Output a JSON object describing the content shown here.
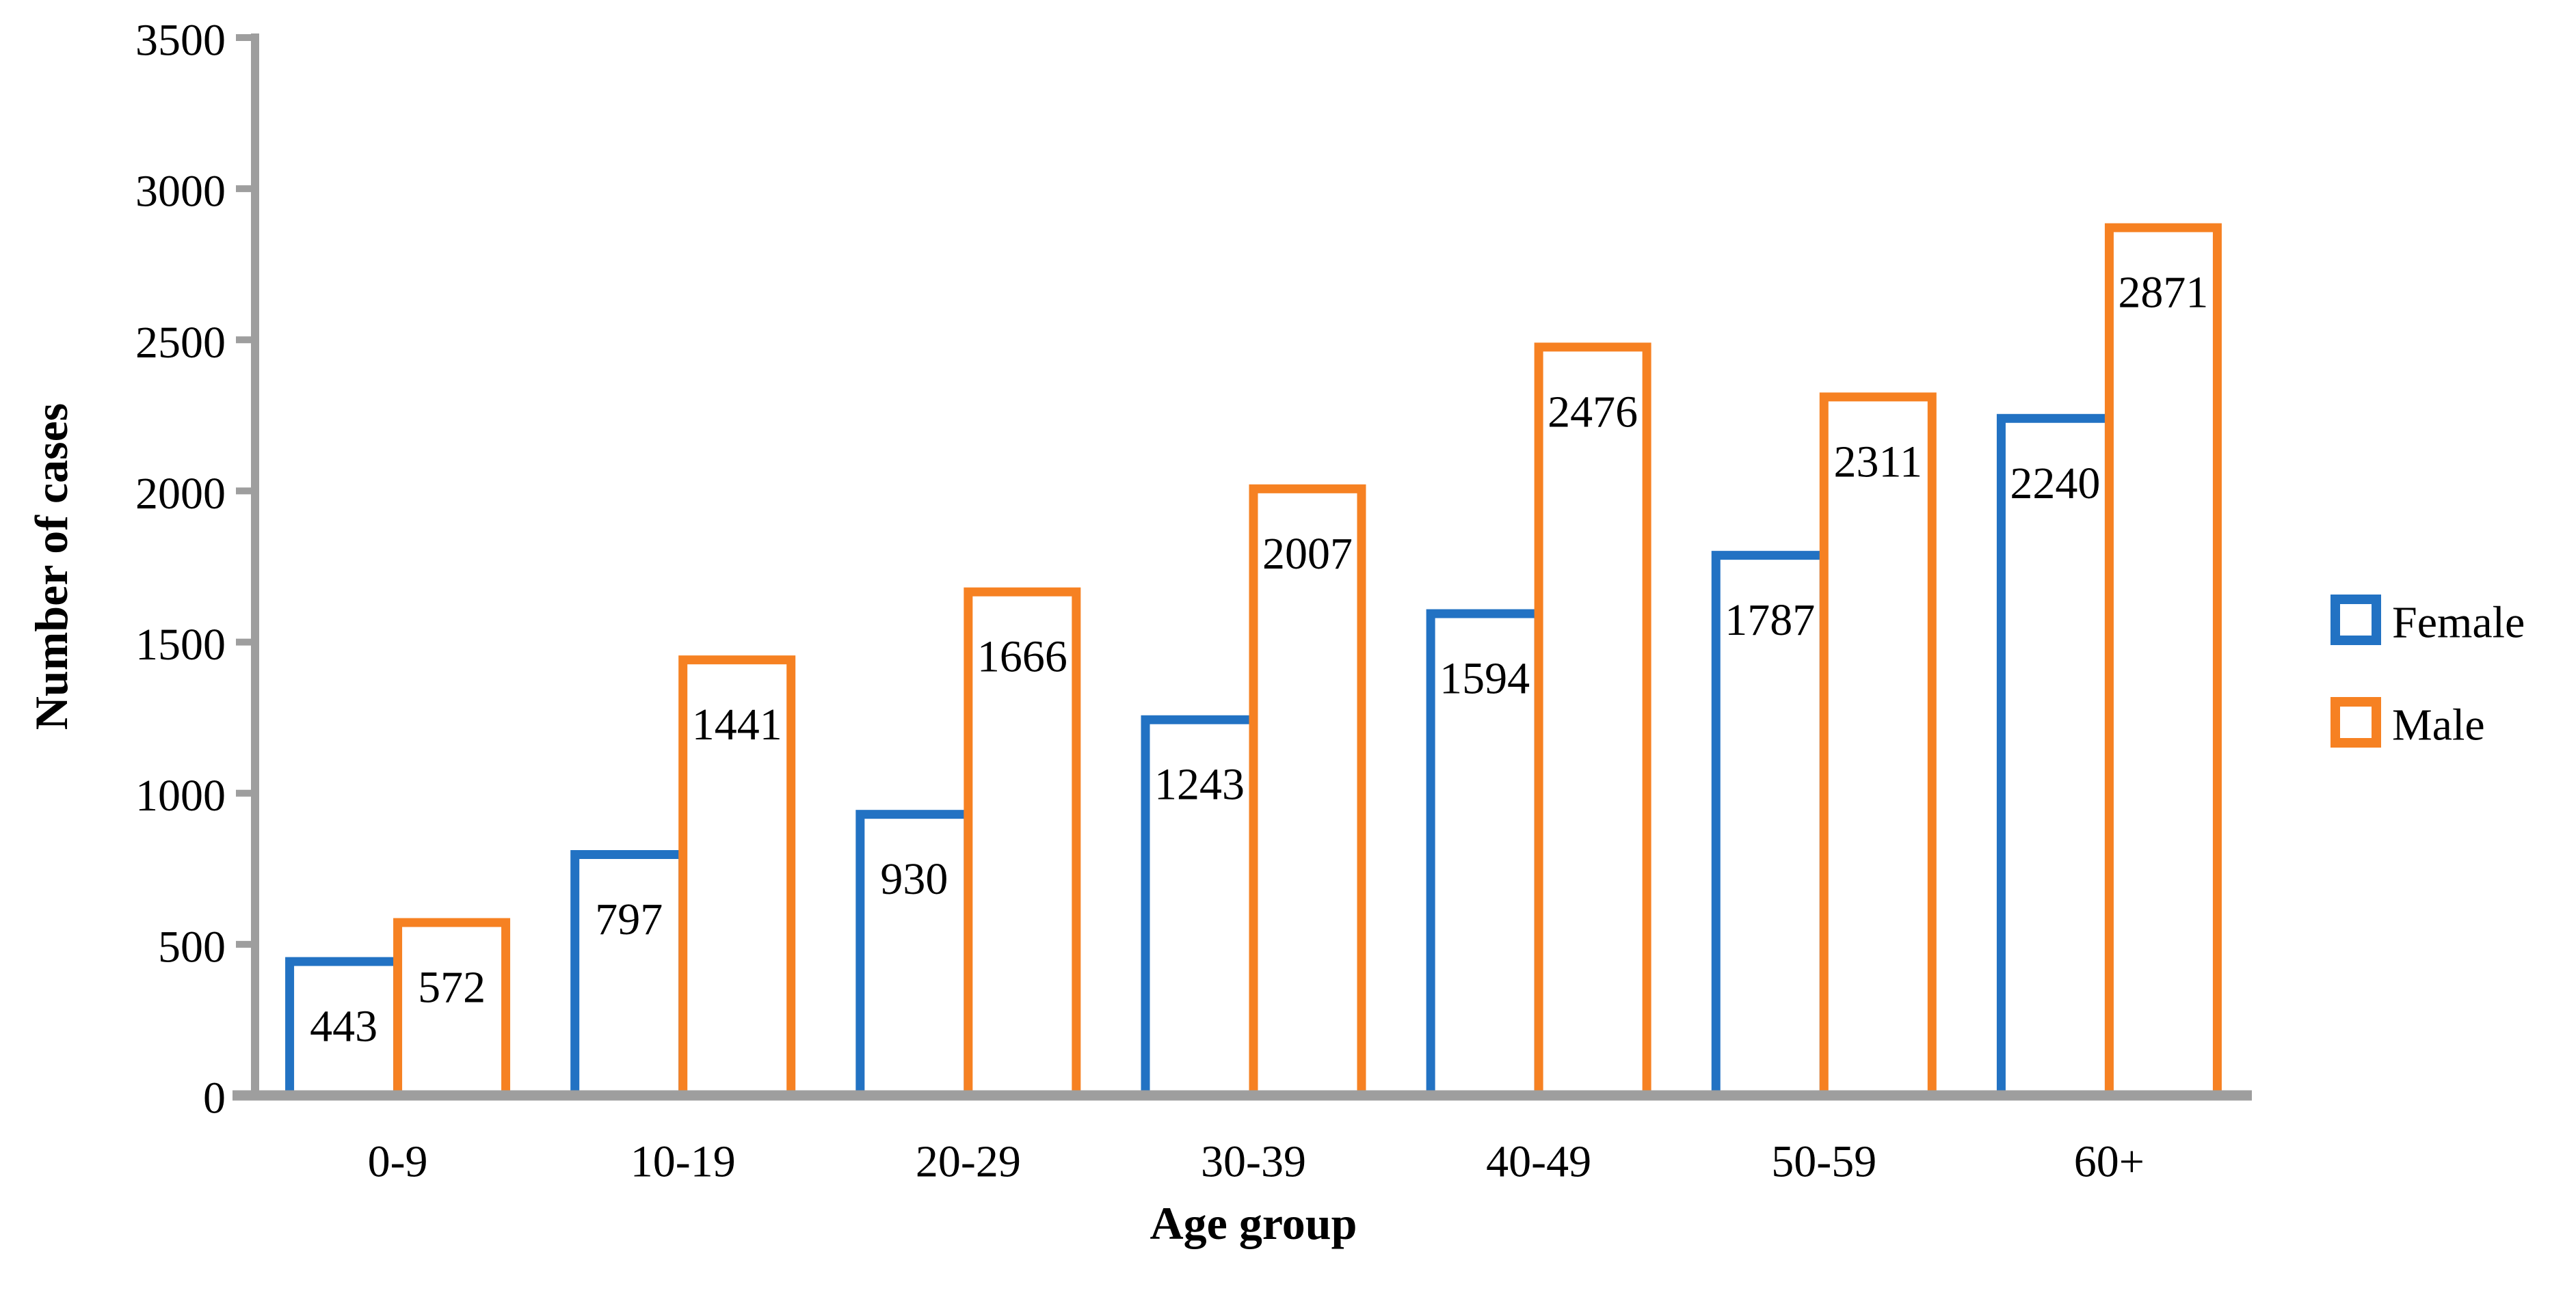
{
  "chart_data": {
    "type": "bar",
    "title": "",
    "categories": [
      "0-9",
      "10-19",
      "20-29",
      "30-39",
      "40-49",
      "50-59",
      "60+"
    ],
    "series": [
      {
        "name": "Female",
        "color": "#2272C3",
        "values": [
          443,
          797,
          930,
          1243,
          1594,
          1787,
          2240
        ]
      },
      {
        "name": "Male",
        "color": "#F68122",
        "values": [
          572,
          1441,
          1666,
          2007,
          2476,
          2311,
          2871
        ]
      }
    ],
    "xlabel": "Age group",
    "ylabel": "Number of cases",
    "ylim": [
      0,
      3500
    ],
    "yticks": [
      0,
      500,
      1000,
      1500,
      2000,
      2500,
      3000,
      3500
    ],
    "grid": "off",
    "bar_style": "hollow-outline",
    "value_label_position": "inside-top",
    "legend_position": "middle-right",
    "axis_color": "#9E9E9E",
    "text_color": "#000000",
    "background_color": "#FFFFFF"
  }
}
